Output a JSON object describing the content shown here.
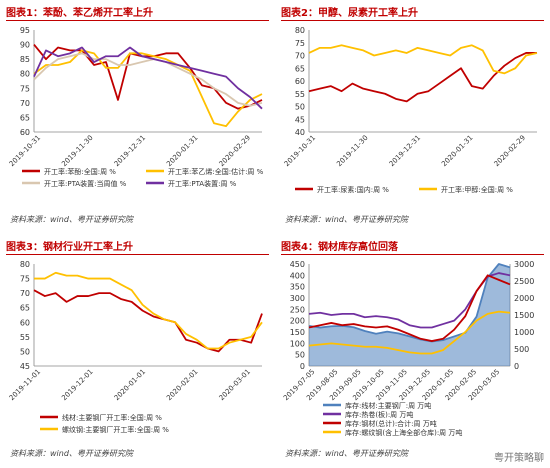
{
  "watermark": "粤开策略聊",
  "chart_data": [
    {
      "type": "line",
      "title": "图表1：苯酚、苯乙烯开工率上升",
      "source": "资料来源：wind、粤开证券研究院",
      "xticks": [
        "2019-10-31",
        "2019-11-30",
        "2019-12-31",
        "2020-01-31",
        "2020-02-29"
      ],
      "ylim": [
        60,
        95
      ],
      "yticks": [
        60,
        65,
        70,
        75,
        80,
        85,
        90,
        95
      ],
      "series": [
        {
          "name": "开工率:苯酚:全国:周 %",
          "color": "#c00000",
          "values": [
            90,
            85,
            89,
            88,
            88,
            83,
            84,
            71,
            87,
            86,
            86,
            87,
            87,
            82,
            76,
            75,
            70,
            68,
            69,
            71
          ]
        },
        {
          "name": "开工率:苯乙烯:全国:估计:周 %",
          "color": "#ffc000",
          "values": [
            80,
            83,
            83,
            84,
            88,
            87,
            82,
            82,
            87,
            87,
            86,
            85,
            83,
            81,
            72,
            63,
            62,
            67,
            71,
            73
          ]
        },
        {
          "name": "开工率:PTA装置:当周值 %",
          "color": "#d9c7b0",
          "values": [
            78,
            82,
            85,
            86,
            87,
            85,
            85,
            83,
            83,
            84,
            85,
            84,
            82,
            80,
            78,
            75,
            73,
            70,
            69,
            70
          ]
        },
        {
          "name": "开工率:PTA装置:周 %",
          "color": "#7030a0",
          "values": [
            79,
            88,
            86,
            87,
            89,
            84,
            86,
            86,
            89,
            86,
            85,
            84,
            83,
            82,
            81,
            80,
            79,
            75,
            72,
            68
          ]
        }
      ]
    },
    {
      "type": "line",
      "title": "图表2：甲醇、尿素开工率上升",
      "source": "资料来源：wind、粤开证券研究院",
      "xticks": [
        "2019-10-31",
        "2019-11-30",
        "2019-12-31",
        "2020-01-31",
        "2020-02-29"
      ],
      "ylim": [
        40,
        80
      ],
      "yticks": [
        40,
        45,
        50,
        55,
        60,
        65,
        70,
        75,
        80
      ],
      "series": [
        {
          "name": "开工率:尿素:国内:周 %",
          "color": "#c00000",
          "values": [
            56,
            57,
            58,
            56,
            59,
            57,
            56,
            55,
            53,
            52,
            55,
            56,
            59,
            62,
            65,
            58,
            57,
            62,
            66,
            69,
            71,
            71
          ]
        },
        {
          "name": "开工率:甲醇:全国:周 %",
          "color": "#ffc000",
          "values": [
            71,
            73,
            73,
            74,
            73,
            72,
            70,
            71,
            72,
            71,
            73,
            72,
            71,
            70,
            73,
            74,
            72,
            64,
            63,
            65,
            70,
            71
          ]
        }
      ]
    },
    {
      "type": "line",
      "title": "图表3：钢材行业开工率上升",
      "source": "资料来源：wind、粤开证券研究院",
      "xticks": [
        "2019-11-01",
        "2019-12-01",
        "2020-01-01",
        "2020-02-01",
        "2020-03-01"
      ],
      "ylim": [
        45,
        80
      ],
      "yticks": [
        45,
        50,
        55,
        60,
        65,
        70,
        75,
        80
      ],
      "series": [
        {
          "name": "线材:主要钢厂开工率:全国:周 %",
          "color": "#c00000",
          "values": [
            71,
            69,
            70,
            67,
            69,
            69,
            70,
            70,
            68,
            67,
            64,
            62,
            61,
            60,
            54,
            53,
            51,
            50,
            54,
            54,
            53,
            63
          ]
        },
        {
          "name": "螺纹钢:主要钢厂开工率:全国:周 %",
          "color": "#ffc000",
          "values": [
            75,
            75,
            77,
            76,
            76,
            75,
            75,
            75,
            73,
            71,
            66,
            63,
            61,
            60,
            56,
            54,
            51,
            51,
            53,
            54,
            55,
            60
          ]
        }
      ]
    },
    {
      "type": "area",
      "title": "图表4：钢材库存高位回落",
      "source": "资料来源：wind、粤开证券研究院",
      "xticks": [
        "2019-07-05",
        "2019-08-05",
        "2019-09-05",
        "2019-10-05",
        "2019-11-05",
        "2019-12-05",
        "2020-01-05",
        "2020-02-05",
        "2020-03-05"
      ],
      "ylim": [
        0,
        450
      ],
      "yticks": [
        0,
        50,
        100,
        150,
        200,
        250,
        300,
        350,
        400,
        450
      ],
      "y2lim": [
        0,
        3000
      ],
      "y2ticks": [
        0,
        500,
        1000,
        1500,
        2000,
        2500,
        3000
      ],
      "series": [
        {
          "name": "库存:线材:主要钢厂:周 万吨",
          "color": "#4f81bd",
          "axis": "right",
          "values": [
            1180,
            1130,
            1170,
            1180,
            1140,
            1030,
            950,
            1010,
            960,
            870,
            780,
            720,
            760,
            870,
            980,
            1450,
            2600,
            3000,
            2900
          ]
        },
        {
          "name": "库存:热卷(板):周 万吨",
          "color": "#7030a0",
          "axis": "left",
          "values": [
            230,
            235,
            225,
            230,
            230,
            215,
            220,
            215,
            205,
            180,
            170,
            170,
            185,
            200,
            250,
            330,
            395,
            410,
            400
          ]
        },
        {
          "name": "库存:钢材(总计):合计:周 万吨",
          "color": "#c00000",
          "axis": "left",
          "values": [
            170,
            180,
            190,
            180,
            185,
            175,
            170,
            175,
            160,
            140,
            120,
            110,
            120,
            160,
            220,
            330,
            400,
            380,
            360
          ]
        },
        {
          "name": "库存:螺纹钢(含上海全部仓库):周 万吨",
          "color": "#ffc000",
          "axis": "left",
          "values": [
            90,
            95,
            100,
            95,
            90,
            85,
            85,
            80,
            70,
            60,
            55,
            55,
            70,
            110,
            150,
            200,
            230,
            240,
            235
          ]
        }
      ]
    }
  ]
}
